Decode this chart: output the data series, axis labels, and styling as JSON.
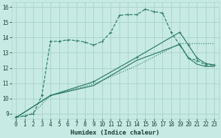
{
  "xlabel": "Humidex (Indice chaleur)",
  "bg_color": "#c8eae4",
  "grid_color": "#a8d4cc",
  "line_color": "#2a7a6a",
  "xlim": [
    -0.5,
    23.5
  ],
  "ylim": [
    8.7,
    16.3
  ],
  "xticks": [
    0,
    1,
    2,
    3,
    4,
    5,
    6,
    7,
    8,
    9,
    10,
    11,
    12,
    13,
    14,
    15,
    16,
    17,
    18,
    19,
    20,
    21,
    22,
    23
  ],
  "yticks": [
    9,
    10,
    11,
    12,
    13,
    14,
    15,
    16
  ],
  "line1_x": [
    0,
    1,
    2,
    3,
    4,
    5,
    6,
    7,
    8,
    9,
    10,
    11,
    12,
    13,
    14,
    15,
    16,
    17,
    18,
    19,
    20,
    21,
    22,
    23
  ],
  "line1_y": [
    8.8,
    8.85,
    9.0,
    10.2,
    13.75,
    13.75,
    13.85,
    13.8,
    13.7,
    13.5,
    13.75,
    14.35,
    15.45,
    15.5,
    15.5,
    15.85,
    15.7,
    15.6,
    14.35,
    13.5,
    12.65,
    12.5,
    12.2,
    12.2
  ],
  "line2_x": [
    0,
    2,
    4,
    9,
    14,
    19,
    23
  ],
  "line2_y": [
    8.75,
    9.05,
    10.2,
    10.95,
    12.15,
    13.6,
    13.6
  ],
  "line3_x": [
    0,
    4,
    9,
    14,
    19,
    20,
    21,
    22,
    23
  ],
  "line3_y": [
    8.75,
    10.2,
    10.85,
    12.5,
    13.55,
    12.65,
    12.25,
    12.1,
    12.1
  ],
  "line4_x": [
    0,
    4,
    9,
    14,
    19,
    20,
    21,
    22,
    23
  ],
  "line4_y": [
    8.75,
    10.2,
    11.1,
    12.7,
    14.35,
    13.5,
    12.65,
    12.3,
    12.2
  ]
}
